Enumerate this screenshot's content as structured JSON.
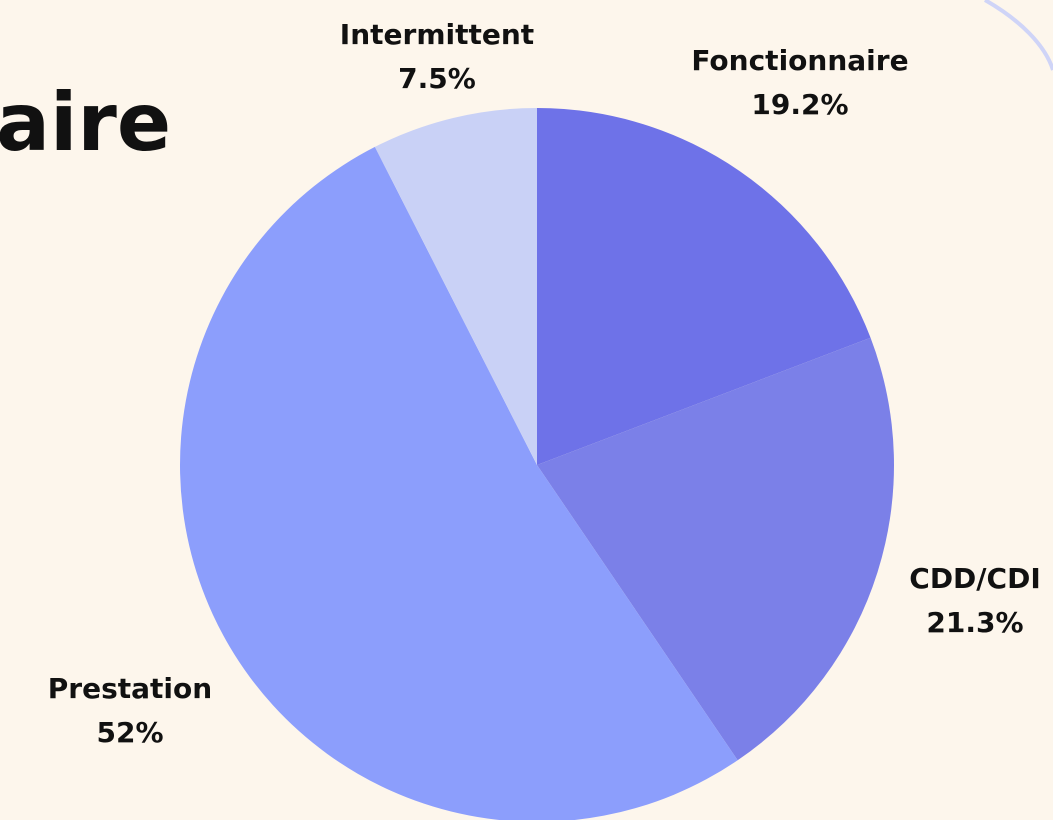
{
  "chart_data": {
    "type": "pie",
    "title": "aire",
    "categories": [
      "Fonctionnaire",
      "CDD/CDI",
      "Prestation",
      "Intermittent"
    ],
    "values": [
      19.2,
      21.3,
      52,
      7.5
    ],
    "value_labels": [
      "19.2%",
      "21.3%",
      "52%",
      "7.5%"
    ],
    "colors": [
      "#6e72e8",
      "#7b80e8",
      "#8c9efc",
      "#c9d1f6"
    ]
  }
}
